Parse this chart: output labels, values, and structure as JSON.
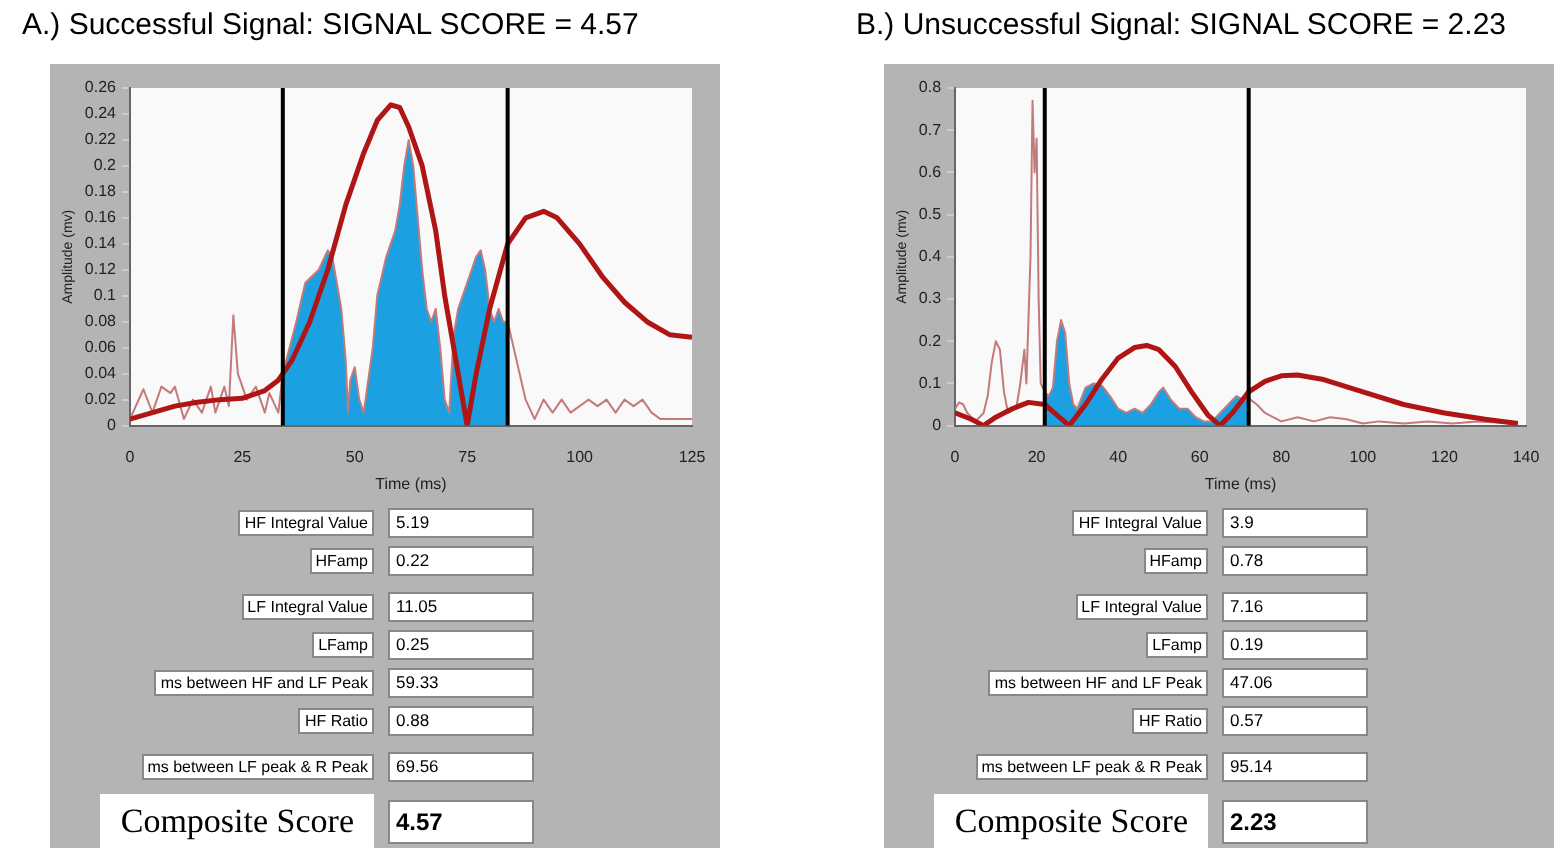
{
  "chart_data": [
    {
      "type": "line",
      "title": "A.) Successful Signal: SIGNAL SCORE = 4.57",
      "xlabel": "Time (ms)",
      "ylabel": "Amplitude (mv)",
      "xlim": [
        0,
        125
      ],
      "xticks": [
        0,
        25,
        50,
        75,
        100,
        125
      ],
      "ylim": [
        0,
        0.26
      ],
      "yticks": [
        0,
        0.02,
        0.04,
        0.06,
        0.08,
        0.1,
        0.12,
        0.14,
        0.16,
        0.18,
        0.2,
        0.22,
        0.24,
        0.26
      ],
      "grid": false,
      "legend": false,
      "series": [
        {
          "type": "area",
          "color": "#1ba1e2",
          "x": [
            34,
            37,
            39,
            42,
            44,
            45,
            47,
            48,
            48.5,
            49,
            50,
            51,
            52,
            54,
            55,
            57,
            59,
            60,
            61,
            62,
            63,
            64,
            65,
            66,
            67,
            68,
            69,
            70,
            71,
            72,
            73,
            75,
            77,
            78,
            79,
            80,
            81,
            82,
            83,
            84
          ],
          "values": [
            0.04,
            0.08,
            0.11,
            0.12,
            0.135,
            0.13,
            0.09,
            0.05,
            0.01,
            0.035,
            0.045,
            0.02,
            0.01,
            0.06,
            0.1,
            0.13,
            0.15,
            0.17,
            0.2,
            0.22,
            0.2,
            0.16,
            0.12,
            0.09,
            0.08,
            0.09,
            0.06,
            0.02,
            0.01,
            0.07,
            0.09,
            0.11,
            0.13,
            0.135,
            0.12,
            0.09,
            0.08,
            0.09,
            0.08,
            0.08
          ]
        },
        {
          "type": "line",
          "color": "#c47a7a",
          "x": [
            0,
            3,
            5,
            7,
            9,
            10,
            12,
            14,
            16,
            18,
            19,
            21,
            22,
            23,
            24,
            26,
            28,
            29,
            30,
            31,
            33,
            34,
            37,
            39,
            42,
            44,
            45,
            47,
            48,
            48.5,
            49,
            50,
            51,
            52,
            54,
            55,
            57,
            59,
            60,
            61,
            62,
            63,
            64,
            65,
            66,
            67,
            68,
            69,
            70,
            71,
            72,
            73,
            75,
            77,
            78,
            79,
            80,
            81,
            82,
            83,
            84,
            86,
            88,
            90,
            92,
            94,
            96,
            98,
            100,
            102,
            104,
            106,
            108,
            110,
            112,
            114,
            116,
            118,
            125
          ],
          "values": [
            0.005,
            0.028,
            0.01,
            0.03,
            0.025,
            0.03,
            0.005,
            0.02,
            0.01,
            0.03,
            0.01,
            0.03,
            0.015,
            0.085,
            0.04,
            0.02,
            0.03,
            0.02,
            0.01,
            0.025,
            0.01,
            0.04,
            0.08,
            0.11,
            0.12,
            0.135,
            0.13,
            0.09,
            0.05,
            0.01,
            0.035,
            0.045,
            0.02,
            0.01,
            0.06,
            0.1,
            0.13,
            0.15,
            0.17,
            0.2,
            0.22,
            0.2,
            0.16,
            0.12,
            0.09,
            0.08,
            0.09,
            0.06,
            0.02,
            0.01,
            0.07,
            0.09,
            0.11,
            0.13,
            0.135,
            0.12,
            0.09,
            0.08,
            0.09,
            0.08,
            0.08,
            0.05,
            0.02,
            0.005,
            0.02,
            0.01,
            0.02,
            0.01,
            0.015,
            0.02,
            0.015,
            0.02,
            0.01,
            0.02,
            0.015,
            0.02,
            0.01,
            0.005,
            0.005
          ]
        },
        {
          "type": "line",
          "color": "#b01515",
          "x": [
            0,
            5,
            10,
            15,
            20,
            25,
            30,
            33,
            36,
            40,
            44,
            48,
            52,
            55,
            58,
            60,
            62,
            65,
            68,
            70,
            72,
            74,
            75,
            77,
            80,
            84,
            88,
            92,
            95,
            100,
            105,
            110,
            115,
            120,
            125
          ],
          "values": [
            0.005,
            0.01,
            0.015,
            0.018,
            0.02,
            0.021,
            0.027,
            0.035,
            0.05,
            0.08,
            0.12,
            0.17,
            0.21,
            0.235,
            0.247,
            0.245,
            0.23,
            0.2,
            0.15,
            0.1,
            0.06,
            0.02,
            0,
            0.04,
            0.09,
            0.14,
            0.16,
            0.165,
            0.16,
            0.14,
            0.115,
            0.095,
            0.08,
            0.07,
            0.068
          ]
        }
      ],
      "ref_lines": [
        {
          "axis": "x",
          "value": 34,
          "color": "#000000"
        },
        {
          "axis": "x",
          "value": 84,
          "color": "#000000"
        }
      ],
      "annotations": [
        "HF Integral Value",
        "5.19",
        "HFamp",
        "0.22",
        "LF Integral Value",
        "11.05",
        "LFamp",
        "0.25",
        "ms between HF and LF Peak",
        "59.33",
        "HF Ratio",
        "0.88",
        "ms between LF peak & R Peak",
        "69.56",
        "Composite Score",
        "4.57"
      ]
    },
    {
      "type": "line",
      "title": "B.) Unsuccessful Signal: SIGNAL SCORE = 2.23",
      "xlabel": "Time (ms)",
      "ylabel": "Amplitude (mv)",
      "xlim": [
        0,
        140
      ],
      "xticks": [
        0,
        20,
        40,
        60,
        80,
        100,
        120,
        140
      ],
      "ylim": [
        0,
        0.8
      ],
      "yticks": [
        0,
        0.1,
        0.2,
        0.3,
        0.4,
        0.5,
        0.6,
        0.7,
        0.8
      ],
      "grid": false,
      "legend": false,
      "series": [
        {
          "type": "area",
          "color": "#1ba1e2",
          "x": [
            22,
            23,
            24,
            25,
            26,
            27,
            28,
            29,
            30,
            32,
            34,
            36,
            38,
            40,
            42,
            44,
            46,
            48,
            50,
            51,
            53,
            55,
            57,
            59,
            61,
            63,
            65,
            67,
            69,
            71,
            72
          ],
          "values": [
            0.08,
            0.07,
            0.09,
            0.2,
            0.25,
            0.22,
            0.1,
            0.05,
            0.04,
            0.09,
            0.1,
            0.095,
            0.07,
            0.04,
            0.03,
            0.04,
            0.03,
            0.05,
            0.08,
            0.09,
            0.06,
            0.04,
            0.04,
            0.02,
            0.01,
            0.01,
            0.03,
            0.05,
            0.07,
            0.06,
            0.065
          ]
        },
        {
          "type": "line",
          "color": "#c47a7a",
          "x": [
            0,
            1,
            2,
            3,
            5,
            7,
            8,
            9,
            10,
            11,
            12,
            13,
            15,
            16,
            17,
            17.5,
            18,
            18.5,
            19,
            19.5,
            20,
            20.5,
            21,
            22,
            23,
            24,
            25,
            26,
            27,
            28,
            29,
            30,
            32,
            34,
            36,
            38,
            40,
            42,
            44,
            46,
            48,
            50,
            51,
            53,
            55,
            57,
            59,
            61,
            63,
            65,
            67,
            69,
            71,
            72,
            74,
            76,
            78,
            80,
            84,
            88,
            92,
            96,
            100,
            104,
            110,
            116,
            122,
            128,
            138
          ],
          "values": [
            0.04,
            0.055,
            0.05,
            0.03,
            0.01,
            0.03,
            0.07,
            0.15,
            0.2,
            0.18,
            0.08,
            0.03,
            0.04,
            0.1,
            0.18,
            0.1,
            0.25,
            0.4,
            0.77,
            0.6,
            0.68,
            0.3,
            0.1,
            0.08,
            0.07,
            0.09,
            0.2,
            0.25,
            0.22,
            0.1,
            0.05,
            0.04,
            0.09,
            0.1,
            0.095,
            0.07,
            0.04,
            0.03,
            0.04,
            0.03,
            0.05,
            0.08,
            0.09,
            0.06,
            0.04,
            0.04,
            0.02,
            0.01,
            0.01,
            0.03,
            0.05,
            0.07,
            0.06,
            0.065,
            0.05,
            0.03,
            0.02,
            0.01,
            0.02,
            0.01,
            0.02,
            0.015,
            0.005,
            0.01,
            0.005,
            0.01,
            0.005,
            0.01,
            0.005
          ]
        },
        {
          "type": "line",
          "color": "#b01515",
          "x": [
            0,
            4,
            7,
            10,
            14,
            18,
            22,
            25,
            28,
            32,
            36,
            40,
            44,
            47,
            50,
            54,
            58,
            62,
            65,
            68,
            72,
            76,
            80,
            84,
            90,
            100,
            110,
            120,
            130,
            138
          ],
          "values": [
            0.03,
            0.015,
            0,
            0.02,
            0.04,
            0.055,
            0.05,
            0.025,
            0,
            0.05,
            0.11,
            0.16,
            0.185,
            0.19,
            0.18,
            0.14,
            0.08,
            0.025,
            0,
            0.03,
            0.08,
            0.105,
            0.118,
            0.12,
            0.11,
            0.08,
            0.05,
            0.03,
            0.015,
            0.005
          ]
        }
      ],
      "ref_lines": [
        {
          "axis": "x",
          "value": 22,
          "color": "#000000"
        },
        {
          "axis": "x",
          "value": 72,
          "color": "#000000"
        }
      ],
      "annotations": [
        "HF Integral Value",
        "3.9",
        "HFamp",
        "0.78",
        "LF Integral Value",
        "7.16",
        "LFamp",
        "0.19",
        "ms between HF and LF Peak",
        "47.06",
        "HF Ratio",
        "0.57",
        "ms between LF peak & R Peak",
        "95.14",
        "Composite Score",
        "2.23"
      ]
    }
  ]
}
